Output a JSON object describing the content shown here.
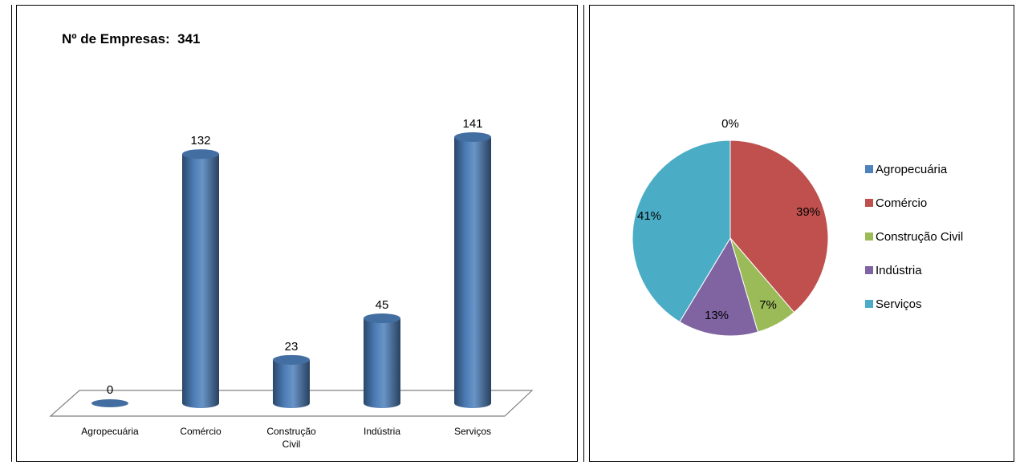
{
  "chart_data": [
    {
      "type": "bar",
      "title": "Nº de Empresas:  341",
      "categories": [
        "Agropecuária",
        "Comércio",
        "Construção Civil",
        "Indústria",
        "Serviços"
      ],
      "category_lines": [
        [
          "Agropecuária"
        ],
        [
          "Comércio"
        ],
        [
          "Construção",
          "Civil"
        ],
        [
          "Indústria"
        ],
        [
          "Serviços"
        ]
      ],
      "values": [
        0,
        132,
        23,
        45,
        141
      ],
      "value_labels": [
        "0",
        "132",
        "23",
        "45",
        "141"
      ],
      "color": "#4F81BD",
      "grid": false,
      "style": "3d-cylinder"
    },
    {
      "type": "pie",
      "categories": [
        "Agropecuária",
        "Comércio",
        "Construção Civil",
        "Indústria",
        "Serviços"
      ],
      "values": [
        0,
        132,
        23,
        45,
        141
      ],
      "percent_labels": [
        "0%",
        "39%",
        "7%",
        "13%",
        "41%"
      ],
      "colors": [
        "#4F81BD",
        "#C0504D",
        "#9BBB59",
        "#8064A2",
        "#4BACC6"
      ],
      "legend": "right"
    }
  ]
}
